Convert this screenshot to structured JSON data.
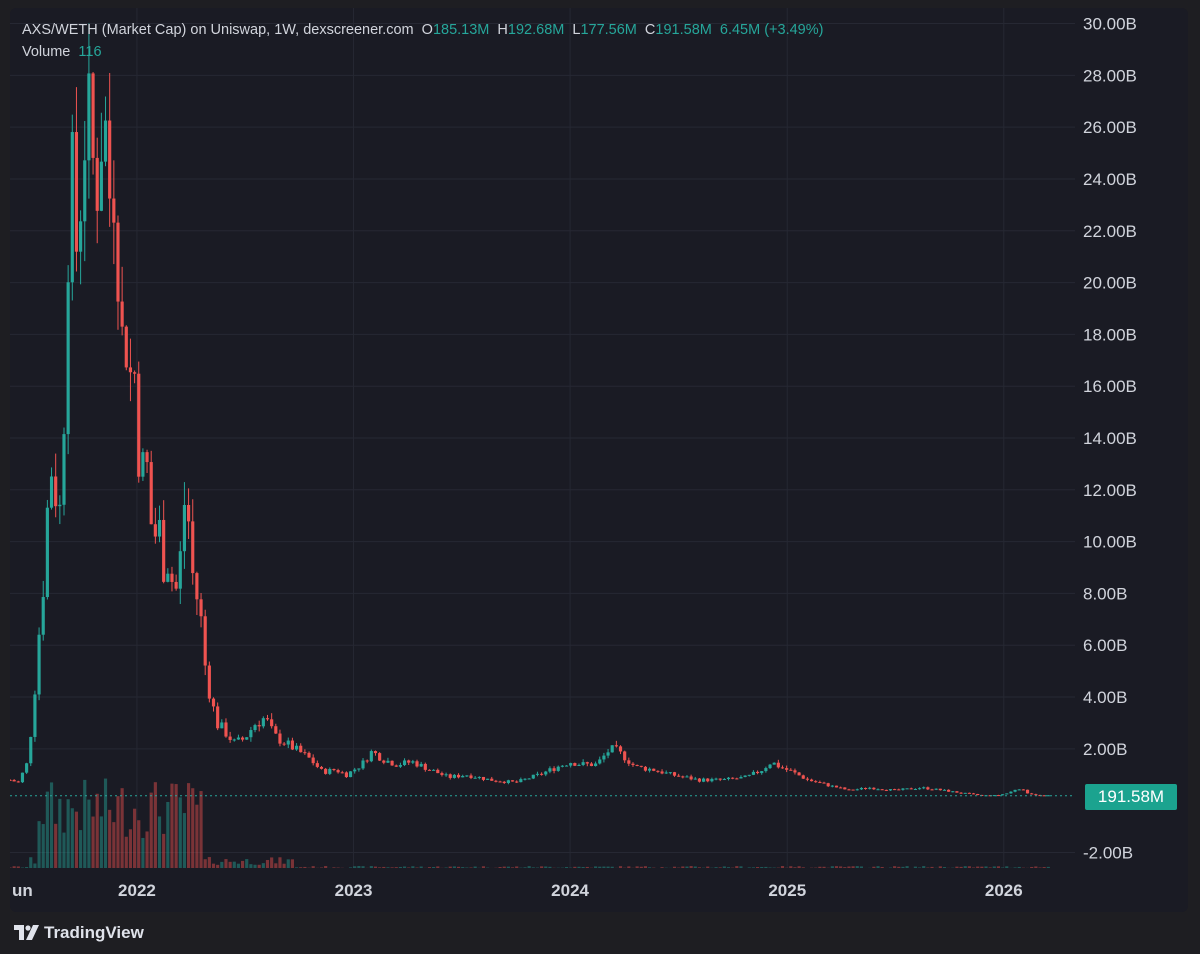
{
  "header": {
    "title": "AXS/WETH (Market Cap) on Uniswap, 1W, dexscreener.com",
    "ohlc": [
      {
        "label": "O",
        "value": "185.13M"
      },
      {
        "label": "H",
        "value": "192.68M"
      },
      {
        "label": "L",
        "value": "177.56M"
      },
      {
        "label": "C",
        "value": "191.58M"
      }
    ],
    "change": "6.45M (+3.49%)",
    "volume_label": "Volume",
    "volume_value": "116"
  },
  "price_badge": "191.58M",
  "brand": "TradingView",
  "colors": {
    "up": "#26a69a",
    "down": "#ef5350",
    "background": "#1a1b24",
    "grid": "#262833",
    "text": "#d1d4dc",
    "badge": "#1ba38f"
  },
  "chart_data": {
    "type": "candlestick",
    "title": "AXS/WETH (Market Cap) on Uniswap, 1W, dexscreener.com",
    "ylabel": "",
    "ylim": [
      -2.6,
      30.6
    ],
    "y_ticks": [
      "30.00B",
      "28.00B",
      "26.00B",
      "24.00B",
      "22.00B",
      "20.00B",
      "18.00B",
      "16.00B",
      "14.00B",
      "12.00B",
      "10.00B",
      "8.00B",
      "6.00B",
      "4.00B",
      "2.00B",
      "-2.00B"
    ],
    "y_tick_values": [
      30,
      28,
      26,
      24,
      22,
      20,
      18,
      16,
      14,
      12,
      10,
      8,
      6,
      4,
      2,
      -2
    ],
    "x_ticks": [
      "un",
      "2022",
      "2023",
      "2024",
      "2025",
      "2026"
    ],
    "x_tick_dates": [
      "2021-06-01",
      "2022-01-01",
      "2023-01-01",
      "2024-01-01",
      "2025-01-01",
      "2026-01-01"
    ],
    "x_start": "2021-06-01",
    "x_end": "2026-05-01",
    "unit": "B",
    "last_value": 0.19158,
    "series": [
      {
        "name": "Market Cap",
        "points": [
          [
            "2021-06-01",
            0.8
          ],
          [
            "2021-06-15",
            0.7
          ],
          [
            "2021-07-01",
            1.5
          ],
          [
            "2021-07-10",
            3.5
          ],
          [
            "2021-07-20",
            6.5
          ],
          [
            "2021-07-25",
            7.5
          ],
          [
            "2021-08-01",
            10.5
          ],
          [
            "2021-08-08",
            13.0
          ],
          [
            "2021-08-15",
            12.5
          ],
          [
            "2021-08-22",
            10.5
          ],
          [
            "2021-08-29",
            13.0
          ],
          [
            "2021-09-05",
            20.5
          ],
          [
            "2021-09-12",
            25.0
          ],
          [
            "2021-09-19",
            21.0
          ],
          [
            "2021-09-26",
            22.5
          ],
          [
            "2021-10-03",
            25.5
          ],
          [
            "2021-10-10",
            26.5
          ],
          [
            "2021-10-17",
            25.0
          ],
          [
            "2021-10-24",
            23.5
          ],
          [
            "2021-11-07",
            27.0
          ],
          [
            "2021-11-14",
            23.0
          ],
          [
            "2021-11-21",
            24.5
          ],
          [
            "2021-11-28",
            22.5
          ],
          [
            "2021-12-05",
            17.5
          ],
          [
            "2021-12-12",
            18.5
          ],
          [
            "2021-12-19",
            16.0
          ],
          [
            "2021-12-26",
            17.5
          ],
          [
            "2022-01-02",
            14.0
          ],
          [
            "2022-01-09",
            12.5
          ],
          [
            "2022-01-16",
            13.5
          ],
          [
            "2022-01-23",
            11.0
          ],
          [
            "2022-01-30",
            10.0
          ],
          [
            "2022-02-06",
            11.0
          ],
          [
            "2022-02-13",
            9.0
          ],
          [
            "2022-02-20",
            9.5
          ],
          [
            "2022-03-06",
            8.0
          ],
          [
            "2022-03-13",
            8.5
          ],
          [
            "2022-03-20",
            11.5
          ],
          [
            "2022-03-27",
            11.5
          ],
          [
            "2022-04-03",
            9.0
          ],
          [
            "2022-04-10",
            8.0
          ],
          [
            "2022-04-17",
            7.5
          ],
          [
            "2022-04-24",
            5.5
          ],
          [
            "2022-05-01",
            4.5
          ],
          [
            "2022-05-15",
            3.0
          ],
          [
            "2022-06-01",
            2.6
          ],
          [
            "2022-06-15",
            2.2
          ],
          [
            "2022-07-01",
            2.4
          ],
          [
            "2022-07-20",
            3.0
          ],
          [
            "2022-08-05",
            3.2
          ],
          [
            "2022-08-20",
            2.5
          ],
          [
            "2022-09-10",
            2.2
          ],
          [
            "2022-10-01",
            1.9
          ],
          [
            "2022-10-20",
            1.6
          ],
          [
            "2022-11-10",
            1.1
          ],
          [
            "2022-12-01",
            1.2
          ],
          [
            "2022-12-20",
            1.0
          ],
          [
            "2023-01-15",
            1.4
          ],
          [
            "2023-02-01",
            1.9
          ],
          [
            "2023-02-20",
            1.6
          ],
          [
            "2023-03-15",
            1.4
          ],
          [
            "2023-04-10",
            1.5
          ],
          [
            "2023-05-10",
            1.2
          ],
          [
            "2023-06-10",
            0.9
          ],
          [
            "2023-07-10",
            1.0
          ],
          [
            "2023-08-20",
            0.8
          ],
          [
            "2023-10-01",
            0.7
          ],
          [
            "2023-11-10",
            1.0
          ],
          [
            "2023-12-10",
            1.3
          ],
          [
            "2024-01-01",
            1.5
          ],
          [
            "2024-01-20",
            1.4
          ],
          [
            "2024-02-15",
            1.4
          ],
          [
            "2024-03-05",
            1.9
          ],
          [
            "2024-03-15",
            2.0
          ],
          [
            "2024-04-01",
            1.7
          ],
          [
            "2024-04-20",
            1.3
          ],
          [
            "2024-05-20",
            1.2
          ],
          [
            "2024-06-20",
            1.0
          ],
          [
            "2024-08-05",
            0.8
          ],
          [
            "2024-09-15",
            0.8
          ],
          [
            "2024-10-25",
            0.9
          ],
          [
            "2024-11-20",
            1.2
          ],
          [
            "2024-12-05",
            1.5
          ],
          [
            "2024-12-20",
            1.3
          ],
          [
            "2025-01-10",
            1.1
          ],
          [
            "2025-02-05",
            0.8
          ],
          [
            "2025-03-10",
            0.6
          ],
          [
            "2025-04-15",
            0.4
          ],
          [
            "2025-05-20",
            0.5
          ],
          [
            "2025-07-01",
            0.4
          ],
          [
            "2025-08-15",
            0.5
          ],
          [
            "2025-09-20",
            0.4
          ],
          [
            "2025-10-20",
            0.3
          ],
          [
            "2025-11-25",
            0.2
          ],
          [
            "2025-12-20",
            0.2
          ],
          [
            "2026-01-10",
            0.3
          ],
          [
            "2026-01-25",
            0.5
          ],
          [
            "2026-02-10",
            0.3
          ],
          [
            "2026-03-01",
            0.2
          ],
          [
            "2026-03-20",
            0.19
          ]
        ]
      }
    ]
  }
}
